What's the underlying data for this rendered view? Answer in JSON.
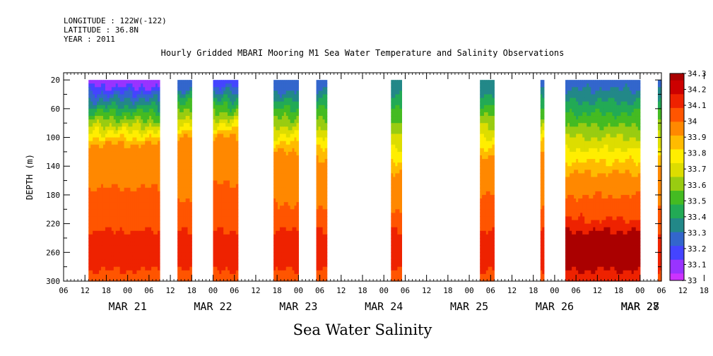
{
  "header": {
    "longitude": "LONGITUDE : 122W(-122)",
    "latitude": "LATITUDE : 36.8N",
    "year": "YEAR : 2011"
  },
  "chart_data": {
    "type": "heatmap",
    "title": "Hourly Gridded MBARI Mooring M1 Sea Water Temperature and Salinity Observations",
    "xlabel": "Sea Water Salinity",
    "ylabel": "DEPTH (m)",
    "x_range_hours": [
      0,
      168
    ],
    "x_start": "2011-03-20T06:00",
    "ylim": [
      300,
      0
    ],
    "y_ticks": [
      20,
      60,
      100,
      140,
      180,
      220,
      260,
      300
    ],
    "x_hour_ticks": [
      "06",
      "12",
      "18",
      "00",
      "06",
      "12",
      "18",
      "00",
      "06",
      "12",
      "18",
      "00",
      "06",
      "12",
      "18",
      "00",
      "06",
      "12",
      "18",
      "00",
      "06",
      "12",
      "18",
      "00",
      "06",
      "12",
      "18",
      "00",
      "06",
      "12",
      "18",
      "00",
      "06"
    ],
    "x_dates": [
      {
        "label": "MAR 21",
        "hour": 18
      },
      {
        "label": "MAR 22",
        "hour": 42
      },
      {
        "label": "MAR 23",
        "hour": 66
      },
      {
        "label": "MAR 24",
        "hour": 90
      },
      {
        "label": "MAR 25",
        "hour": 114
      },
      {
        "label": "MAR 26",
        "hour": 138
      },
      {
        "label": "MAR 27",
        "hour": 162
      },
      {
        "label": "MAR 28",
        "hour": 186
      }
    ],
    "colorbar": {
      "levels": [
        33,
        33.1,
        33.2,
        33.3,
        33.4,
        33.5,
        33.6,
        33.7,
        33.8,
        33.9,
        34,
        34.1,
        34.2,
        34.3
      ],
      "labels": [
        "33",
        "33.1",
        "33.2",
        "33.3",
        "33.4",
        "33.5",
        "33.6",
        "33.7",
        "33.8",
        "33.9",
        "34",
        "34.1",
        "34.2",
        "34.3"
      ],
      "colors": [
        "#cc33ff",
        "#9933ff",
        "#4444ff",
        "#3366cc",
        "#228888",
        "#22aa55",
        "#44bb22",
        "#99cc11",
        "#dddd00",
        "#ffee00",
        "#ffbb00",
        "#ff8800",
        "#ff5500",
        "#ee2200",
        "#cc0000",
        "#aa0000"
      ]
    },
    "data_segments": [
      {
        "start_hour": 7,
        "end_hour": 27,
        "surface": 33.05,
        "halocline_depth": 70,
        "deep": 34.25
      },
      {
        "start_hour": 32,
        "end_hour": 36,
        "surface": 33.2,
        "halocline_depth": 60,
        "deep": 34.2
      },
      {
        "start_hour": 42,
        "end_hour": 49,
        "surface": 33.15,
        "halocline_depth": 60,
        "deep": 34.25
      },
      {
        "start_hour": 59,
        "end_hour": 66,
        "surface": 33.2,
        "halocline_depth": 80,
        "deep": 34.2
      },
      {
        "start_hour": 71,
        "end_hour": 74,
        "surface": 33.25,
        "halocline_depth": 90,
        "deep": 34.2
      },
      {
        "start_hour": 92,
        "end_hour": 95,
        "surface": 33.3,
        "halocline_depth": 110,
        "deep": 34.2
      },
      {
        "start_hour": 117,
        "end_hour": 121,
        "surface": 33.3,
        "halocline_depth": 90,
        "deep": 34.25
      },
      {
        "start_hour": 134,
        "end_hour": 135,
        "surface": 33.25,
        "halocline_depth": 80,
        "deep": 34.2
      },
      {
        "start_hour": 141,
        "end_hour": 162,
        "surface": 33.25,
        "halocline_depth": 110,
        "deep": 34.3
      },
      {
        "start_hour": 167,
        "end_hour": 168,
        "surface": 33.25,
        "halocline_depth": 100,
        "deep": 34.2
      }
    ]
  }
}
